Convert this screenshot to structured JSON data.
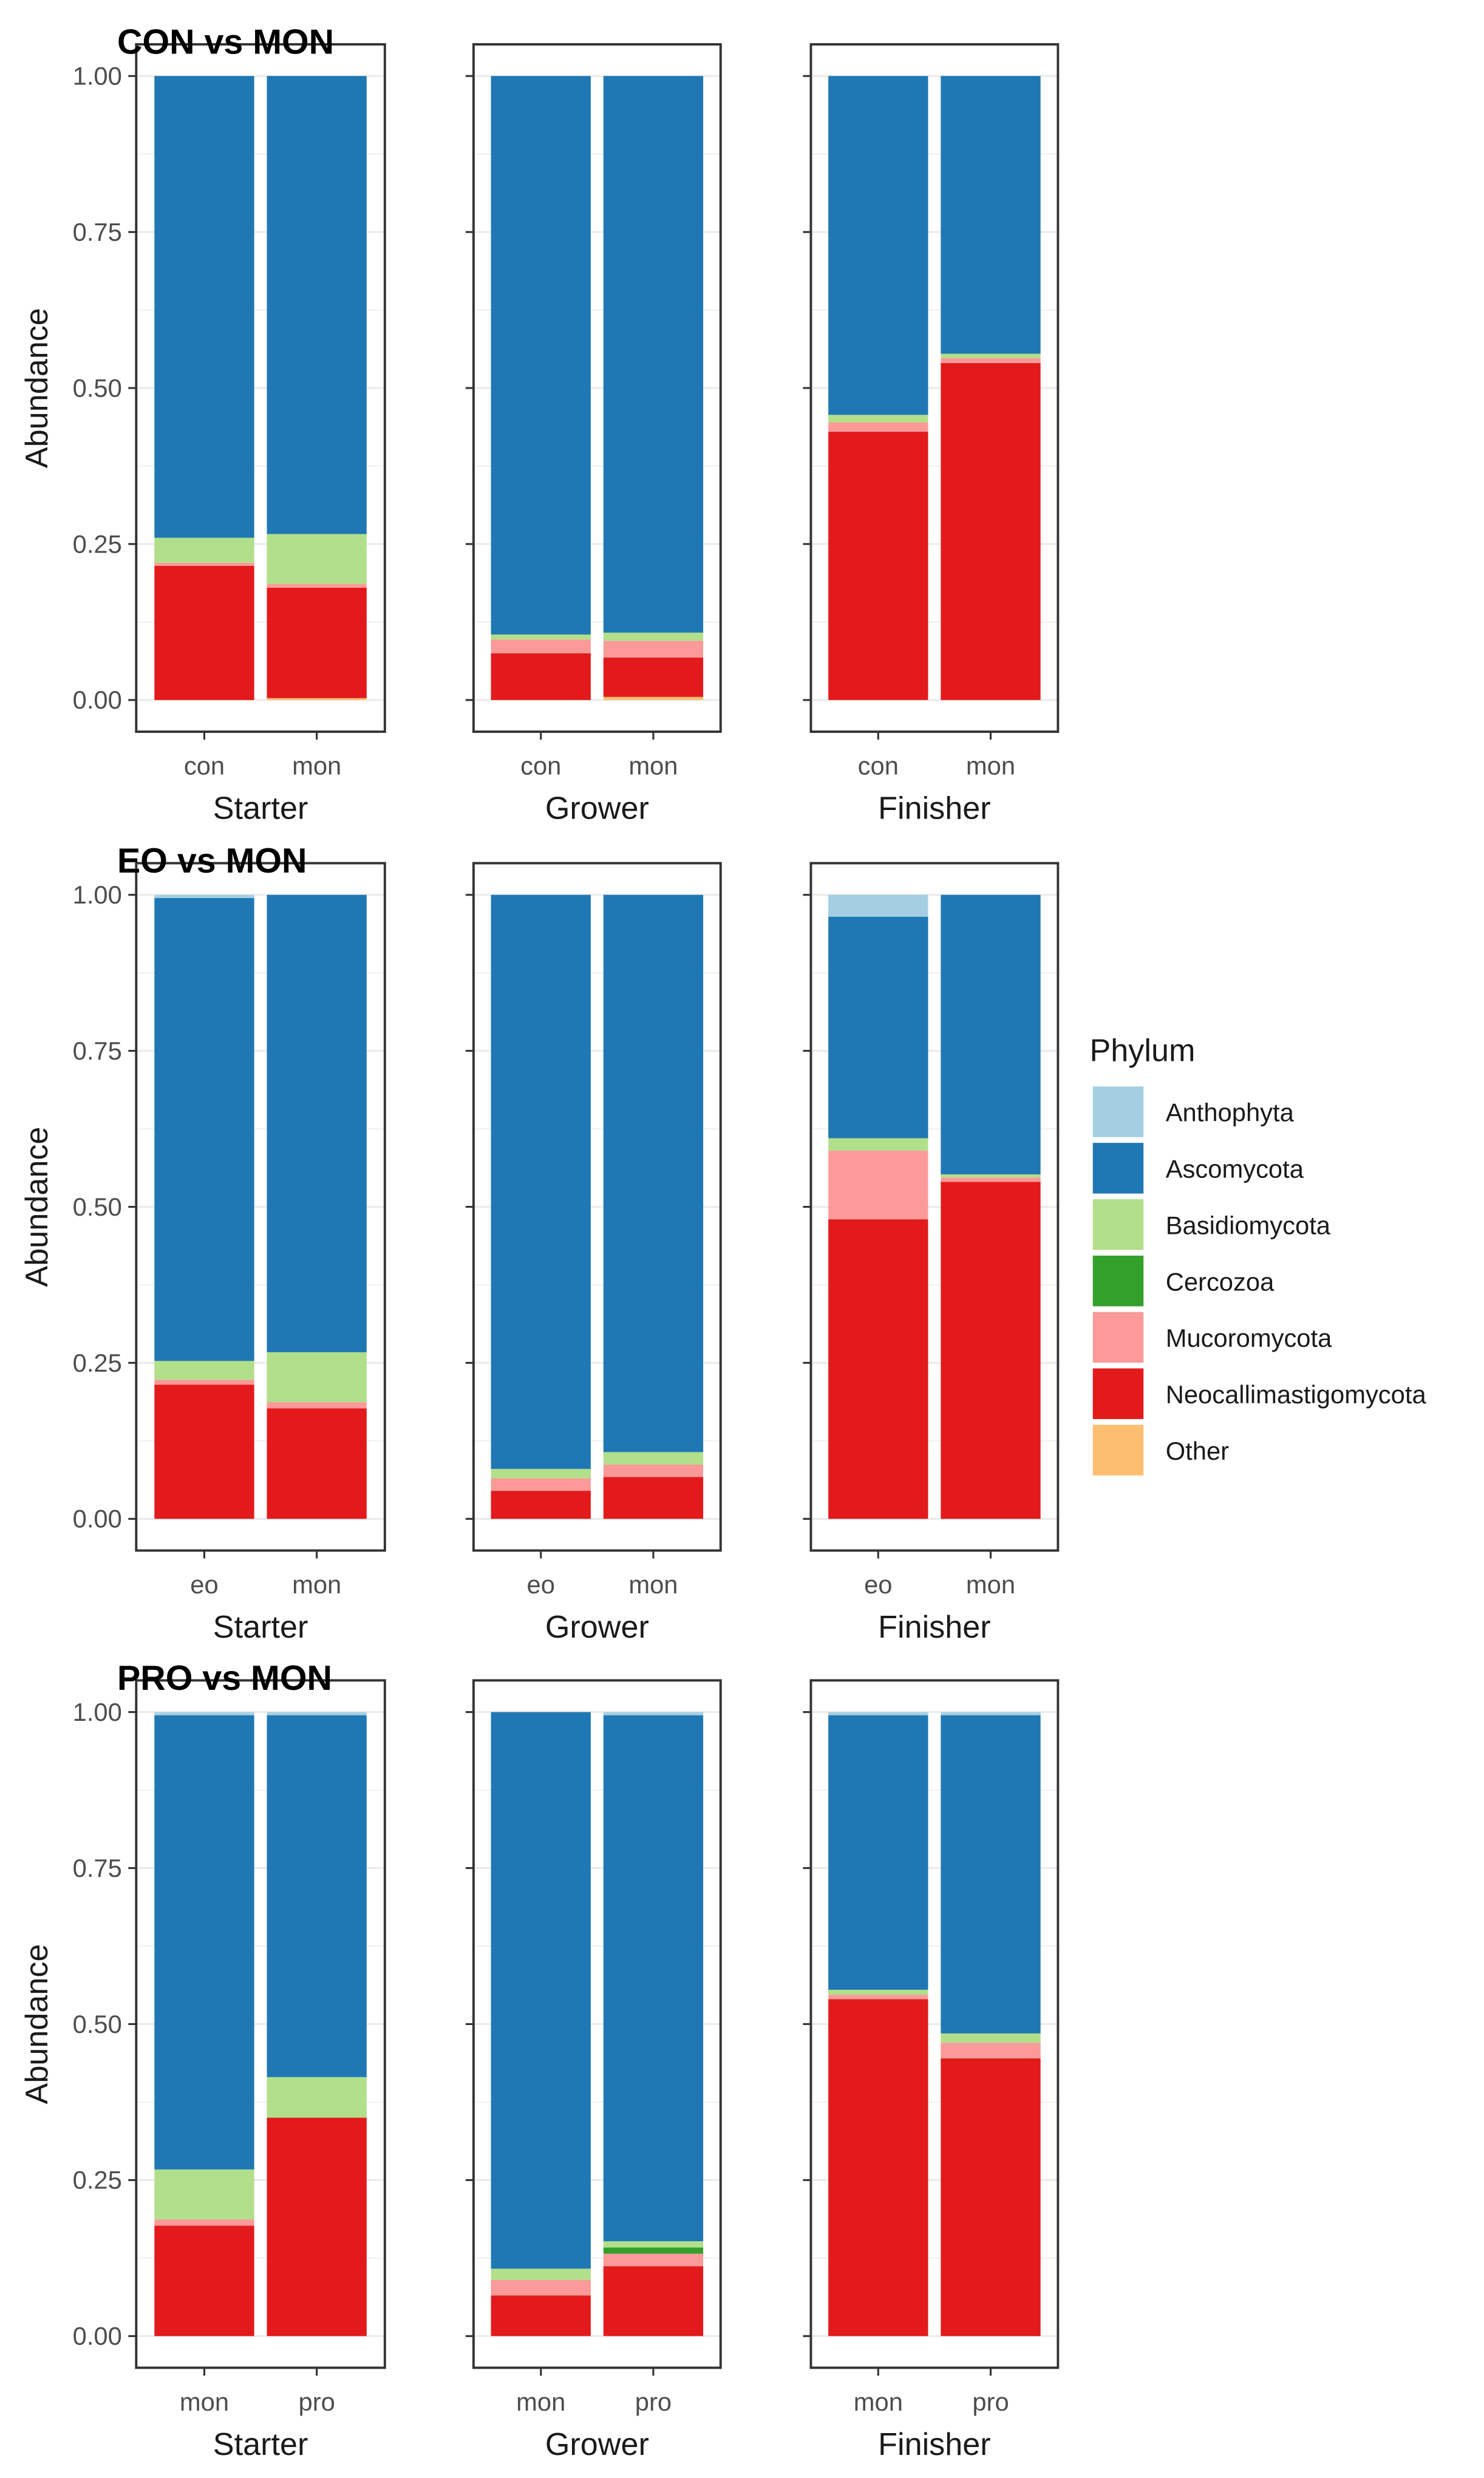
{
  "colors": {
    "Anthophyta": "#a6cee3",
    "Ascomycota": "#1f78b4",
    "Basidiomycota": "#b2df8a",
    "Cercozoa": "#33a02c",
    "Mucoromycota": "#fb9a99",
    "Neocallimastigomycota": "#e31a1c",
    "Other": "#fdbf6f"
  },
  "legend": {
    "title": "Phylum",
    "entries": [
      "Anthophyta",
      "Ascomycota",
      "Basidiomycota",
      "Cercozoa",
      "Mucoromycota",
      "Neocallimastigomycota",
      "Other"
    ],
    "placement": "right"
  },
  "chart_data": [
    {
      "type": "bar",
      "stacked": true,
      "title": "CON vs MON",
      "ylabel": "Abundance",
      "ylim": [
        0,
        1
      ],
      "yticks": [
        "0.00",
        "0.25",
        "0.50",
        "0.75",
        "1.00"
      ],
      "panels": [
        {
          "xlabel": "Starter",
          "categories": [
            "con",
            "mon"
          ],
          "series": [
            {
              "name": "Other",
              "values": [
                0,
                0.003
              ]
            },
            {
              "name": "Neocallimastigomycota",
              "values": [
                0.215,
                0.177
              ]
            },
            {
              "name": "Mucoromycota",
              "values": [
                0.005,
                0.006
              ]
            },
            {
              "name": "Cercozoa",
              "values": [
                0,
                0
              ]
            },
            {
              "name": "Basidiomycota",
              "values": [
                0.04,
                0.08
              ]
            },
            {
              "name": "Ascomycota",
              "values": [
                0.74,
                0.734
              ]
            },
            {
              "name": "Anthophyta",
              "values": [
                0,
                0
              ]
            }
          ]
        },
        {
          "xlabel": "Grower",
          "categories": [
            "con",
            "mon"
          ],
          "series": [
            {
              "name": "Other",
              "values": [
                0,
                0.005
              ]
            },
            {
              "name": "Neocallimastigomycota",
              "values": [
                0.075,
                0.063
              ]
            },
            {
              "name": "Mucoromycota",
              "values": [
                0.022,
                0.027
              ]
            },
            {
              "name": "Cercozoa",
              "values": [
                0,
                0
              ]
            },
            {
              "name": "Basidiomycota",
              "values": [
                0.008,
                0.013
              ]
            },
            {
              "name": "Ascomycota",
              "values": [
                0.895,
                0.892
              ]
            },
            {
              "name": "Anthophyta",
              "values": [
                0,
                0
              ]
            }
          ]
        },
        {
          "xlabel": "Finisher",
          "categories": [
            "con",
            "mon"
          ],
          "series": [
            {
              "name": "Other",
              "values": [
                0,
                0
              ]
            },
            {
              "name": "Neocallimastigomycota",
              "values": [
                0.43,
                0.54
              ]
            },
            {
              "name": "Mucoromycota",
              "values": [
                0.015,
                0.008
              ]
            },
            {
              "name": "Cercozoa",
              "values": [
                0,
                0
              ]
            },
            {
              "name": "Basidiomycota",
              "values": [
                0.012,
                0.007
              ]
            },
            {
              "name": "Ascomycota",
              "values": [
                0.543,
                0.445
              ]
            },
            {
              "name": "Anthophyta",
              "values": [
                0,
                0
              ]
            }
          ]
        }
      ]
    },
    {
      "type": "bar",
      "stacked": true,
      "title": "EO vs MON",
      "ylabel": "Abundance",
      "ylim": [
        0,
        1
      ],
      "yticks": [
        "0.00",
        "0.25",
        "0.50",
        "0.75",
        "1.00"
      ],
      "panels": [
        {
          "xlabel": "Starter",
          "categories": [
            "eo",
            "mon"
          ],
          "series": [
            {
              "name": "Other",
              "values": [
                0,
                0
              ]
            },
            {
              "name": "Neocallimastigomycota",
              "values": [
                0.215,
                0.177
              ]
            },
            {
              "name": "Mucoromycota",
              "values": [
                0.008,
                0.01
              ]
            },
            {
              "name": "Cercozoa",
              "values": [
                0,
                0
              ]
            },
            {
              "name": "Basidiomycota",
              "values": [
                0.03,
                0.08
              ]
            },
            {
              "name": "Ascomycota",
              "values": [
                0.742,
                0.733
              ]
            },
            {
              "name": "Anthophyta",
              "values": [
                0.005,
                0
              ]
            }
          ]
        },
        {
          "xlabel": "Grower",
          "categories": [
            "eo",
            "mon"
          ],
          "series": [
            {
              "name": "Other",
              "values": [
                0,
                0
              ]
            },
            {
              "name": "Neocallimastigomycota",
              "values": [
                0.045,
                0.067
              ]
            },
            {
              "name": "Mucoromycota",
              "values": [
                0.02,
                0.02
              ]
            },
            {
              "name": "Cercozoa",
              "values": [
                0,
                0
              ]
            },
            {
              "name": "Basidiomycota",
              "values": [
                0.015,
                0.02
              ]
            },
            {
              "name": "Ascomycota",
              "values": [
                0.92,
                0.893
              ]
            },
            {
              "name": "Anthophyta",
              "values": [
                0,
                0
              ]
            }
          ]
        },
        {
          "xlabel": "Finisher",
          "categories": [
            "eo",
            "mon"
          ],
          "series": [
            {
              "name": "Other",
              "values": [
                0,
                0
              ]
            },
            {
              "name": "Neocallimastigomycota",
              "values": [
                0.48,
                0.54
              ]
            },
            {
              "name": "Mucoromycota",
              "values": [
                0.11,
                0.007
              ]
            },
            {
              "name": "Cercozoa",
              "values": [
                0,
                0
              ]
            },
            {
              "name": "Basidiomycota",
              "values": [
                0.02,
                0.005
              ]
            },
            {
              "name": "Ascomycota",
              "values": [
                0.355,
                0.448
              ]
            },
            {
              "name": "Anthophyta",
              "values": [
                0.035,
                0
              ]
            }
          ]
        }
      ]
    },
    {
      "type": "bar",
      "stacked": true,
      "title": "PRO vs MON",
      "ylabel": "Abundance",
      "ylim": [
        0,
        1
      ],
      "yticks": [
        "0.00",
        "0.25",
        "0.50",
        "0.75",
        "1.00"
      ],
      "panels": [
        {
          "xlabel": "Starter",
          "categories": [
            "mon",
            "pro"
          ],
          "series": [
            {
              "name": "Other",
              "values": [
                0,
                0
              ]
            },
            {
              "name": "Neocallimastigomycota",
              "values": [
                0.177,
                0.35
              ]
            },
            {
              "name": "Mucoromycota",
              "values": [
                0.01,
                0
              ]
            },
            {
              "name": "Cercozoa",
              "values": [
                0,
                0
              ]
            },
            {
              "name": "Basidiomycota",
              "values": [
                0.08,
                0.065
              ]
            },
            {
              "name": "Ascomycota",
              "values": [
                0.728,
                0.58
              ]
            },
            {
              "name": "Anthophyta",
              "values": [
                0.005,
                0.005
              ]
            }
          ]
        },
        {
          "xlabel": "Grower",
          "categories": [
            "mon",
            "pro"
          ],
          "series": [
            {
              "name": "Other",
              "values": [
                0,
                0
              ]
            },
            {
              "name": "Neocallimastigomycota",
              "values": [
                0.065,
                0.112
              ]
            },
            {
              "name": "Mucoromycota",
              "values": [
                0.025,
                0.02
              ]
            },
            {
              "name": "Cercozoa",
              "values": [
                0,
                0.01
              ]
            },
            {
              "name": "Basidiomycota",
              "values": [
                0.018,
                0.01
              ]
            },
            {
              "name": "Ascomycota",
              "values": [
                0.892,
                0.843
              ]
            },
            {
              "name": "Anthophyta",
              "values": [
                0,
                0.005
              ]
            }
          ]
        },
        {
          "xlabel": "Finisher",
          "categories": [
            "mon",
            "pro"
          ],
          "series": [
            {
              "name": "Other",
              "values": [
                0,
                0
              ]
            },
            {
              "name": "Neocallimastigomycota",
              "values": [
                0.54,
                0.445
              ]
            },
            {
              "name": "Mucoromycota",
              "values": [
                0.007,
                0.025
              ]
            },
            {
              "name": "Cercozoa",
              "values": [
                0,
                0
              ]
            },
            {
              "name": "Basidiomycota",
              "values": [
                0.008,
                0.015
              ]
            },
            {
              "name": "Ascomycota",
              "values": [
                0.44,
                0.51
              ]
            },
            {
              "name": "Anthophyta",
              "values": [
                0.005,
                0.005
              ]
            }
          ]
        }
      ]
    }
  ]
}
